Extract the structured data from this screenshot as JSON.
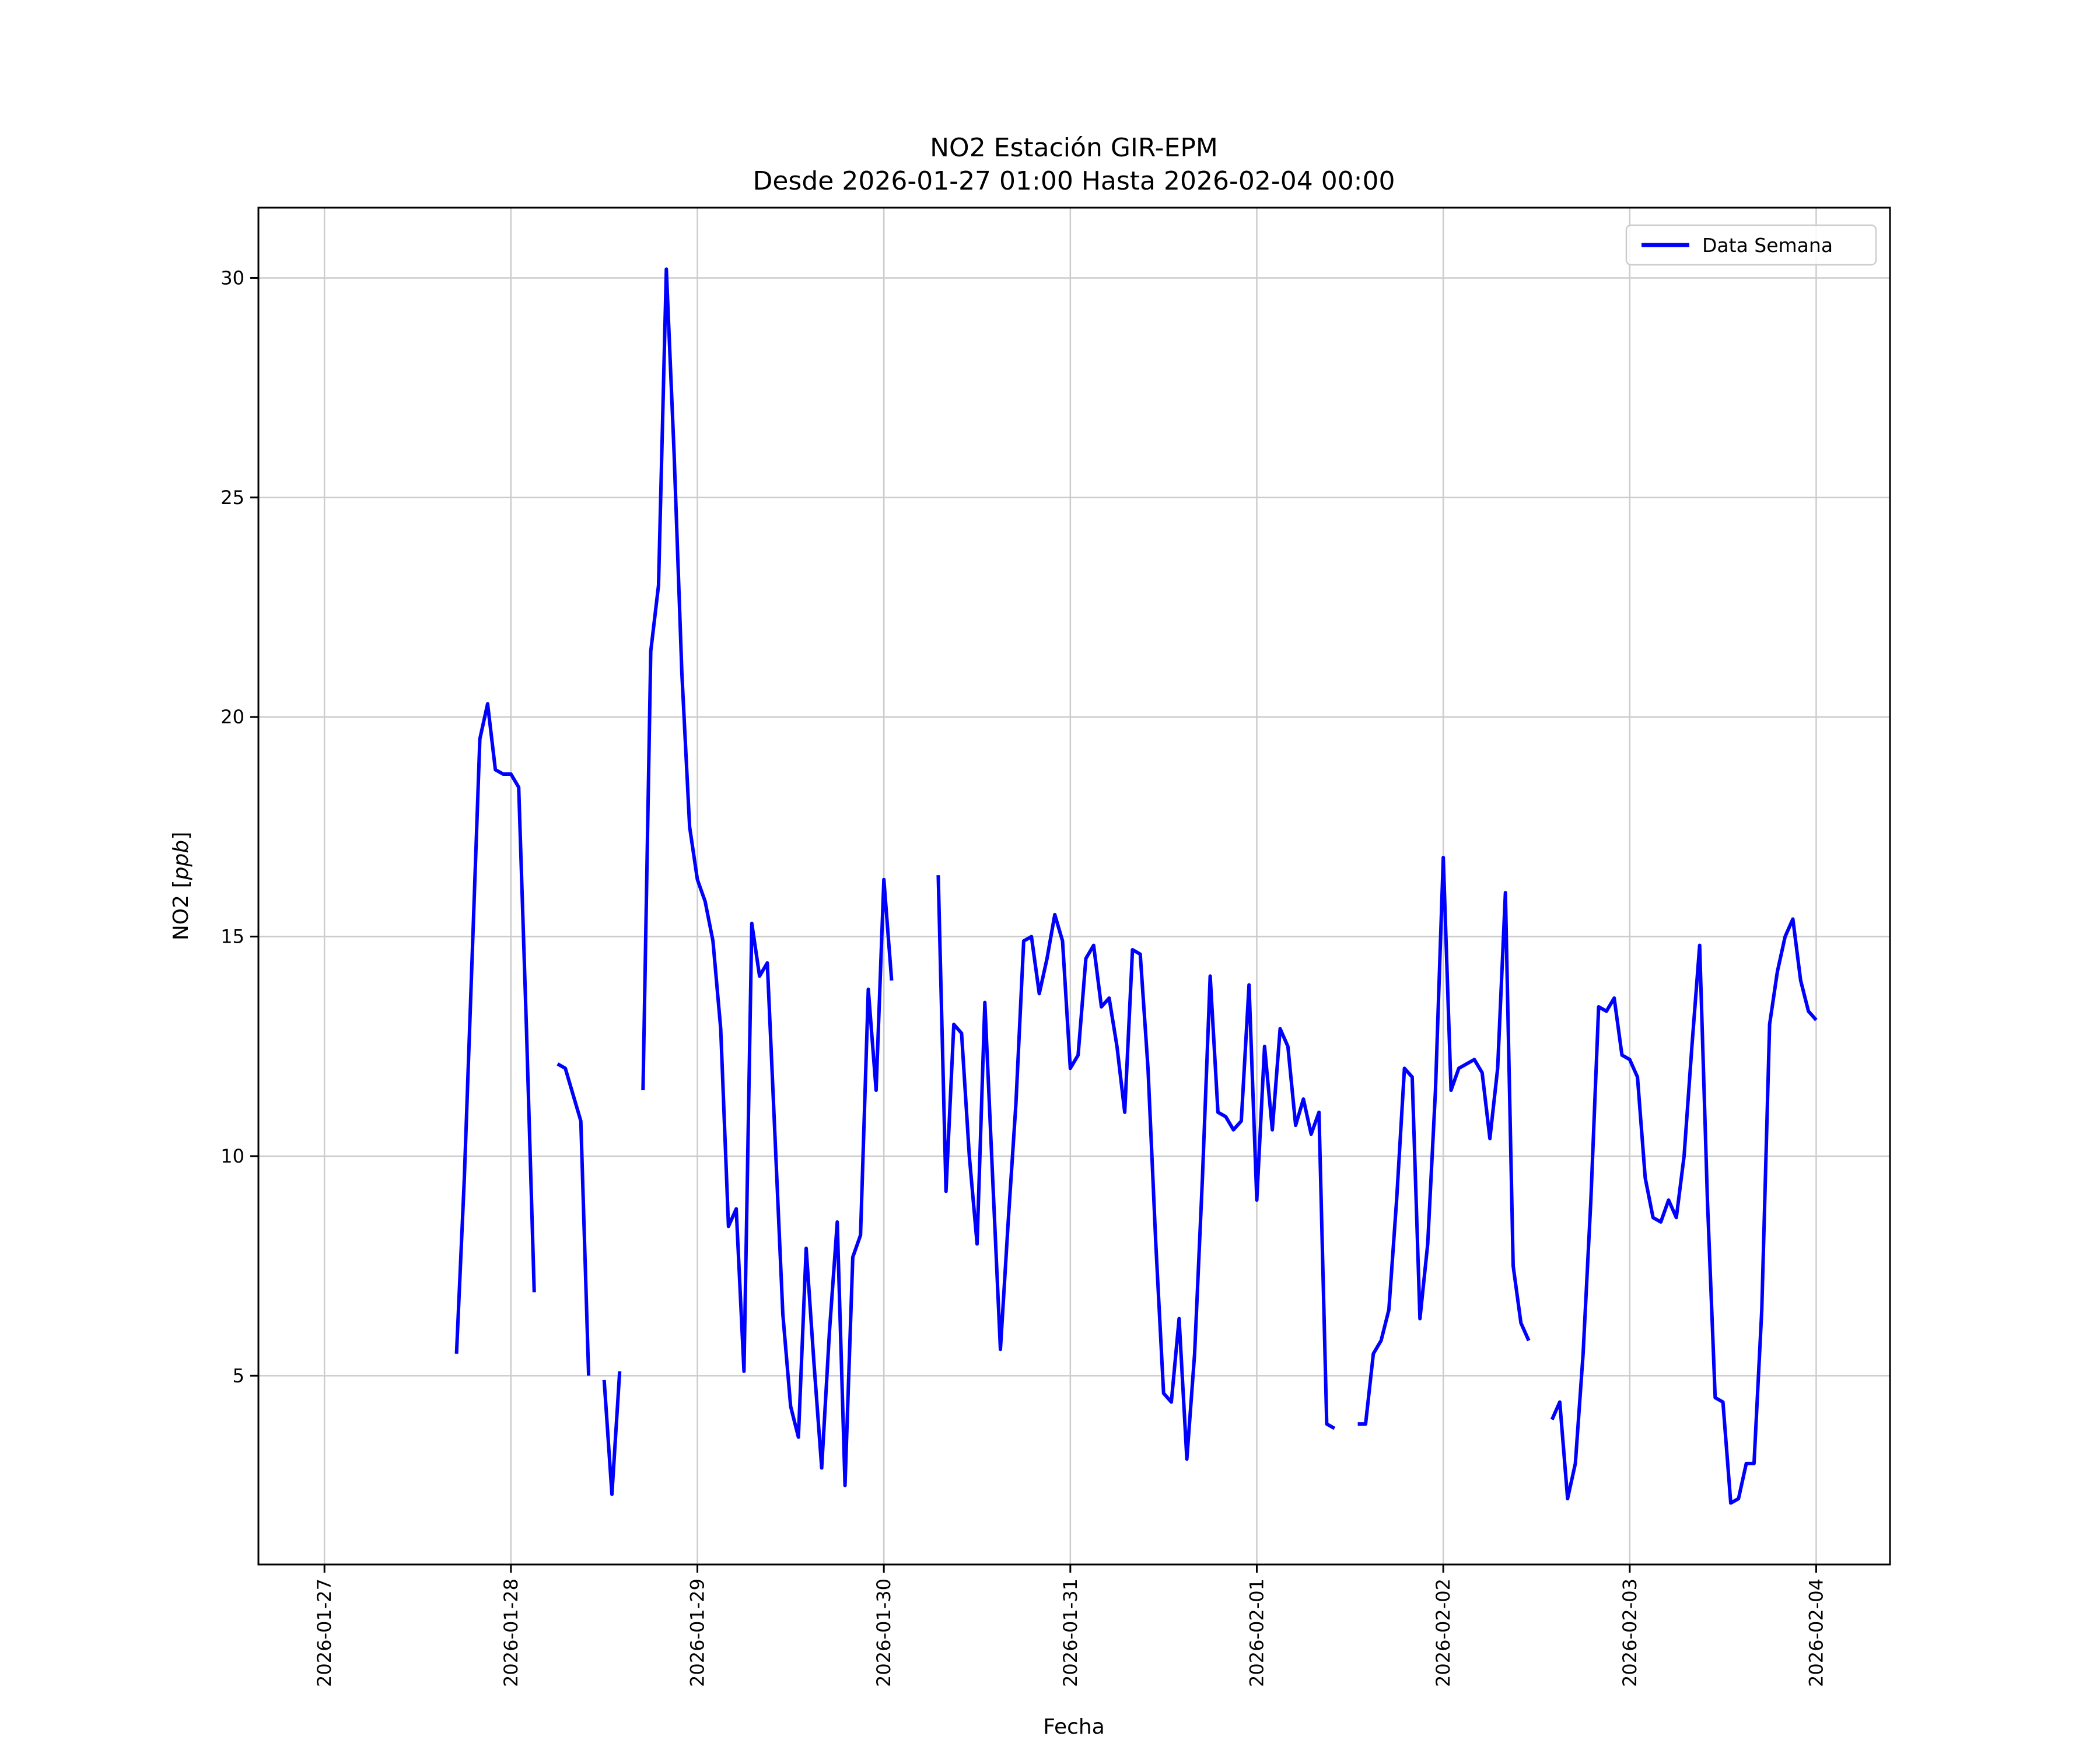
{
  "chart_data": {
    "type": "line",
    "title": "NO2 Estación GIR-EPM",
    "subtitle": "Desde 2026-01-27 01:00 Hasta 2026-02-04 00:00",
    "xlabel": "Fecha",
    "ylabel": "NO2 [ppb]",
    "ylabel_parts": {
      "prefix": "NO2 [",
      "italic": "ppb",
      "suffix": "]"
    },
    "grid": true,
    "legend": {
      "position": "upper right",
      "entries": [
        "Data Semana"
      ]
    },
    "y_ticks": [
      5,
      10,
      15,
      20,
      25,
      30
    ],
    "ylim": [
      0.7,
      31.6
    ],
    "x_tick_labels": [
      "2026-01-27",
      "2026-01-28",
      "2026-01-29",
      "2026-01-30",
      "2026-01-31",
      "2026-02-01",
      "2026-02-02",
      "2026-02-03",
      "2026-02-04"
    ],
    "x_tick_hours": [
      0,
      24,
      48,
      72,
      96,
      120,
      144,
      168,
      192
    ],
    "x_domain_hours": [
      -8.5,
      201.5
    ],
    "x_unit": "hours since 2026-01-27 00:00",
    "series": [
      {
        "name": "Data Semana",
        "color": "#0000ff",
        "start_time": "2026-01-27 01:00",
        "start_hour": 1,
        "interval_hours": 1,
        "values": [
          null,
          null,
          null,
          null,
          null,
          null,
          null,
          null,
          null,
          null,
          null,
          null,
          null,
          null,
          null,
          null,
          5.5,
          9.5,
          14.5,
          19.5,
          20.3,
          18.8,
          18.7,
          18.7,
          18.4,
          12.9,
          6.9,
          null,
          null,
          12.1,
          12.0,
          11.4,
          10.8,
          5.0,
          null,
          4.9,
          2.3,
          5.1,
          null,
          null,
          11.5,
          21.5,
          23.0,
          30.2,
          26.0,
          21.0,
          17.5,
          16.3,
          15.8,
          14.9,
          12.9,
          8.4,
          8.8,
          5.1,
          15.3,
          14.1,
          14.4,
          10.4,
          6.4,
          4.3,
          3.6,
          7.9,
          5.3,
          2.9,
          6.0,
          8.5,
          2.5,
          7.7,
          8.2,
          13.8,
          11.5,
          16.3,
          14.0,
          null,
          null,
          null,
          null,
          null,
          16.4,
          9.2,
          13.0,
          12.8,
          10.0,
          8.0,
          13.5,
          9.5,
          5.6,
          8.5,
          11.2,
          14.9,
          15.0,
          13.7,
          14.5,
          15.5,
          14.9,
          12.0,
          12.3,
          14.5,
          14.8,
          13.4,
          13.6,
          12.5,
          11.0,
          14.7,
          14.6,
          12.0,
          8.0,
          4.6,
          4.4,
          6.3,
          3.1,
          5.5,
          9.5,
          14.1,
          11.0,
          10.9,
          10.6,
          10.8,
          13.9,
          9.0,
          12.5,
          10.6,
          12.9,
          12.5,
          10.7,
          11.3,
          10.5,
          11.0,
          3.9,
          3.8,
          null,
          null,
          3.9,
          3.9,
          5.5,
          5.8,
          6.5,
          9.0,
          12.0,
          11.8,
          6.3,
          8.0,
          11.5,
          16.8,
          11.5,
          12.0,
          12.1,
          12.2,
          11.9,
          10.4,
          12.0,
          16.0,
          7.5,
          6.2,
          5.8,
          null,
          null,
          4.0,
          4.4,
          2.2,
          3.0,
          5.5,
          9.0,
          13.4,
          13.3,
          13.6,
          12.3,
          12.2,
          11.8,
          9.5,
          8.6,
          8.5,
          9.0,
          8.6,
          10.0,
          12.5,
          14.8,
          9.0,
          4.5,
          4.4,
          2.1,
          2.2,
          3.0,
          3.0,
          6.5,
          13.0,
          14.2,
          15.0,
          15.4,
          14.0,
          13.3,
          13.1
        ]
      }
    ]
  }
}
